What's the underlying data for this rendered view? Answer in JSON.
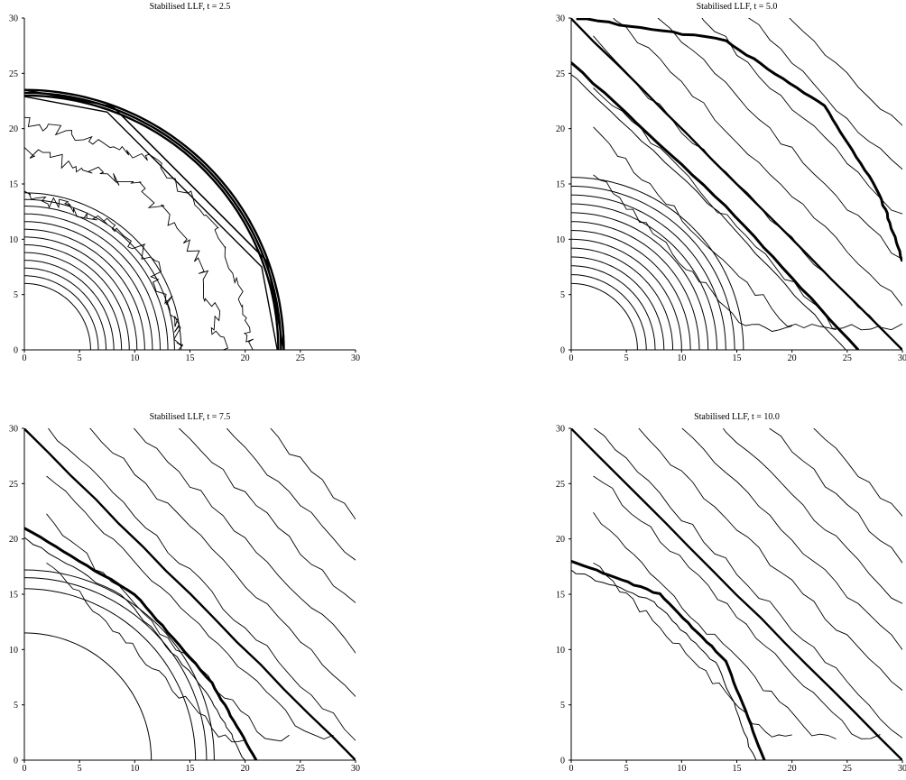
{
  "chart_data": [
    {
      "type": "contour",
      "title": "Stabilised LLF, t = 2.5",
      "xlim": [
        0,
        30
      ],
      "ylim": [
        0,
        30
      ],
      "x_ticks": [
        0,
        5,
        10,
        15,
        20,
        25,
        30
      ],
      "y_ticks": [
        0,
        5,
        10,
        15,
        20,
        25,
        30
      ],
      "grid": false,
      "line_color": "#000000",
      "features": {
        "outer_shock_radius": 23.5,
        "reflected_front": [
          [
            0,
            23.5
          ],
          [
            8,
            22
          ],
          [
            22,
            8
          ],
          [
            23.5,
            0
          ]
        ],
        "inner_ring_radii": [
          6,
          6.7,
          7.4,
          8.1,
          8.8,
          9.5,
          10.2,
          10.9,
          11.6,
          12.3,
          13.0,
          13.6,
          14.2
        ],
        "irregular_contours": [
          [
            0,
            18
          ],
          [
            5,
            16.5
          ],
          [
            10,
            15
          ],
          [
            15,
            10
          ],
          [
            17,
            4
          ],
          [
            18,
            0
          ]
        ]
      }
    },
    {
      "type": "contour",
      "title": "Stabilised LLF, t = 5.0",
      "xlim": [
        0,
        30
      ],
      "ylim": [
        0,
        30
      ],
      "x_ticks": [
        0,
        5,
        10,
        15,
        20,
        25,
        30
      ],
      "y_ticks": [
        0,
        5,
        10,
        15,
        20,
        25,
        30
      ],
      "grid": false,
      "line_color": "#000000",
      "features": {
        "outer_shock_arc": [
          [
            0.5,
            30
          ],
          [
            14,
            28
          ],
          [
            23,
            22
          ],
          [
            28,
            14
          ],
          [
            30,
            8
          ]
        ],
        "diagonal_front": [
          [
            0,
            30
          ],
          [
            30,
            0
          ]
        ],
        "inner_front": [
          [
            0,
            26
          ],
          [
            14,
            13
          ],
          [
            26,
            0
          ]
        ],
        "inner_ring_radii": [
          6,
          6.8,
          7.6,
          8.4,
          9.2,
          10.0,
          10.8,
          11.6,
          12.4,
          13.2,
          14.0,
          14.8,
          15.6
        ]
      }
    },
    {
      "type": "contour",
      "title": "Stabilised LLF, t = 7.5",
      "xlim": [
        0,
        30
      ],
      "ylim": [
        0,
        30
      ],
      "x_ticks": [
        0,
        5,
        10,
        15,
        20,
        25,
        30
      ],
      "y_ticks": [
        0,
        5,
        10,
        15,
        20,
        25,
        30
      ],
      "grid": false,
      "line_color": "#000000",
      "features": {
        "diagonal_front": [
          [
            0,
            30
          ],
          [
            30,
            0
          ]
        ],
        "inner_front": [
          [
            0,
            21
          ],
          [
            10,
            15
          ],
          [
            17,
            7
          ],
          [
            21,
            0
          ]
        ],
        "triple_point": [
          21,
          0.5
        ],
        "inner_ring_radii": [
          11.5,
          15.5,
          16.5,
          17.2
        ]
      }
    },
    {
      "type": "contour",
      "title": "Stabilised LLF, t = 10.0",
      "xlim": [
        0,
        30
      ],
      "ylim": [
        0,
        30
      ],
      "x_ticks": [
        0,
        5,
        10,
        15,
        20,
        25,
        30
      ],
      "y_ticks": [
        0,
        5,
        10,
        15,
        20,
        25,
        30
      ],
      "grid": false,
      "line_color": "#000000",
      "features": {
        "diagonal_front": [
          [
            0,
            30
          ],
          [
            30,
            0
          ]
        ],
        "inner_front": [
          [
            0,
            18
          ],
          [
            8,
            15
          ],
          [
            14,
            9
          ],
          [
            17.5,
            0
          ]
        ],
        "triple_point": [
          17.5,
          0.5
        ]
      }
    }
  ]
}
